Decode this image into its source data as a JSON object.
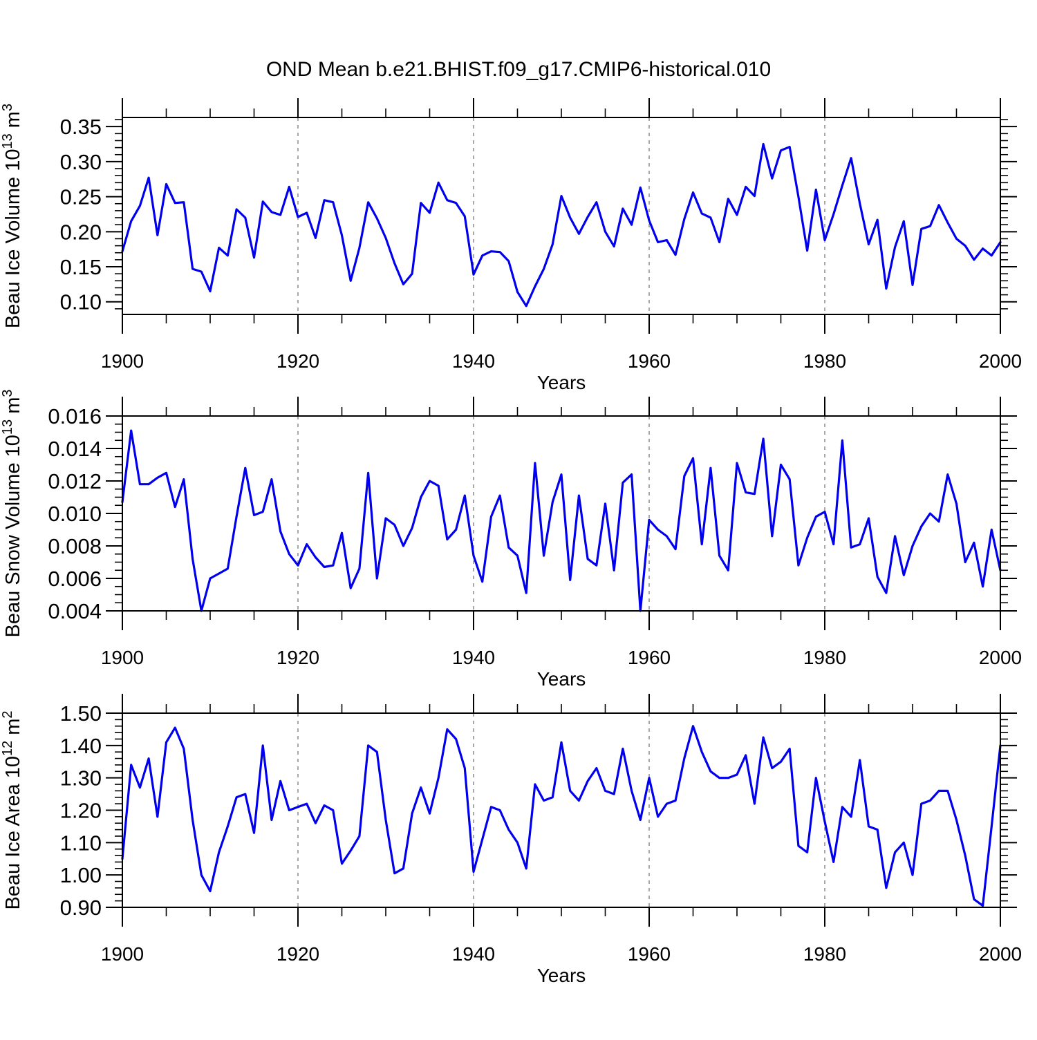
{
  "title": "OND Mean b.e21.BHIST.f09_g17.CMIP6-historical.010",
  "line_color": "#0000EE",
  "grid_color": "#8a8a8a",
  "frame_color": "#000000",
  "chart_data": [
    {
      "type": "line",
      "ylabel": "Beau Ice Volume 10^13 m^3",
      "ylabel_rich": [
        {
          "t": "Beau Ice Volume 10"
        },
        {
          "sup": "13"
        },
        {
          "t": " m"
        },
        {
          "sup": "3"
        }
      ],
      "xlabel": "Years",
      "x_first_year": 1900,
      "x_last_year": 2000,
      "ylim": [
        0.082,
        0.363
      ],
      "yticks": [
        0.1,
        0.15,
        0.2,
        0.25,
        0.3,
        0.35
      ],
      "ytick_labels": [
        "0.10",
        "0.15",
        "0.20",
        "0.25",
        "0.30",
        "0.35"
      ],
      "y_minor_step": 0.01,
      "xticks": [
        1900,
        1920,
        1940,
        1960,
        1980,
        2000
      ],
      "xtick_labels": [
        "1900",
        "1920",
        "1940",
        "1960",
        "1980",
        "2000"
      ],
      "x_minor_step": 5,
      "gridlines_x": [
        1920,
        1940,
        1960,
        1980
      ],
      "values": [
        0.172,
        0.215,
        0.237,
        0.277,
        0.195,
        0.268,
        0.241,
        0.242,
        0.147,
        0.143,
        0.115,
        0.177,
        0.166,
        0.232,
        0.22,
        0.163,
        0.243,
        0.228,
        0.224,
        0.264,
        0.221,
        0.227,
        0.191,
        0.245,
        0.242,
        0.195,
        0.13,
        0.177,
        0.242,
        0.219,
        0.191,
        0.155,
        0.125,
        0.14,
        0.241,
        0.227,
        0.27,
        0.245,
        0.241,
        0.222,
        0.139,
        0.166,
        0.172,
        0.171,
        0.158,
        0.114,
        0.094,
        0.122,
        0.147,
        0.182,
        0.251,
        0.22,
        0.197,
        0.221,
        0.242,
        0.2,
        0.179,
        0.233,
        0.21,
        0.263,
        0.216,
        0.185,
        0.188,
        0.167,
        0.218,
        0.256,
        0.226,
        0.22,
        0.185,
        0.247,
        0.224,
        0.264,
        0.251,
        0.325,
        0.276,
        0.316,
        0.321,
        0.25,
        0.173,
        0.26,
        0.188,
        0.225,
        0.266,
        0.305,
        0.24,
        0.182,
        0.217,
        0.119,
        0.178,
        0.215,
        0.124,
        0.204,
        0.208,
        0.238,
        0.213,
        0.19,
        0.18,
        0.16,
        0.176,
        0.166,
        0.185
      ]
    },
    {
      "type": "line",
      "ylabel": "Beau Snow Volume 10^13 m^3",
      "ylabel_rich": [
        {
          "t": "Beau Snow Volume 10"
        },
        {
          "sup": "13"
        },
        {
          "t": " m"
        },
        {
          "sup": "3"
        }
      ],
      "xlabel": "Years",
      "x_first_year": 1900,
      "x_last_year": 2000,
      "ylim": [
        0.004,
        0.016
      ],
      "yticks": [
        0.004,
        0.006,
        0.008,
        0.01,
        0.012,
        0.014,
        0.016
      ],
      "ytick_labels": [
        "0.004",
        "0.006",
        "0.008",
        "0.010",
        "0.012",
        "0.014",
        "0.016"
      ],
      "y_minor_step": 0.0005,
      "xticks": [
        1900,
        1920,
        1940,
        1960,
        1980,
        2000
      ],
      "xtick_labels": [
        "1900",
        "1920",
        "1940",
        "1960",
        "1980",
        "2000"
      ],
      "x_minor_step": 5,
      "gridlines_x": [
        1920,
        1940,
        1960,
        1980
      ],
      "values": [
        0.0107,
        0.0151,
        0.0118,
        0.0118,
        0.0122,
        0.0125,
        0.0104,
        0.0121,
        0.0072,
        0.004,
        0.006,
        0.0063,
        0.0066,
        0.0098,
        0.0128,
        0.0099,
        0.0101,
        0.0121,
        0.0089,
        0.0075,
        0.0068,
        0.0081,
        0.0073,
        0.0067,
        0.0068,
        0.0088,
        0.0054,
        0.0066,
        0.0125,
        0.006,
        0.0097,
        0.0093,
        0.008,
        0.0091,
        0.011,
        0.012,
        0.0117,
        0.0084,
        0.009,
        0.0111,
        0.0074,
        0.0058,
        0.0098,
        0.0111,
        0.0079,
        0.0074,
        0.0051,
        0.0131,
        0.0074,
        0.0107,
        0.0124,
        0.0059,
        0.0111,
        0.0072,
        0.0068,
        0.0106,
        0.0065,
        0.0119,
        0.0124,
        0.004,
        0.0096,
        0.009,
        0.0086,
        0.0078,
        0.0123,
        0.0134,
        0.0081,
        0.0128,
        0.0074,
        0.0065,
        0.0131,
        0.0113,
        0.0112,
        0.0146,
        0.0086,
        0.013,
        0.0121,
        0.0068,
        0.0085,
        0.0098,
        0.0101,
        0.0081,
        0.0145,
        0.0079,
        0.0081,
        0.0097,
        0.0061,
        0.0051,
        0.0086,
        0.0062,
        0.008,
        0.0092,
        0.01,
        0.0095,
        0.0124,
        0.0106,
        0.007,
        0.0082,
        0.0055,
        0.009,
        0.0065
      ]
    },
    {
      "type": "line",
      "ylabel": "Beau Ice Area 10^12 m^2",
      "ylabel_rich": [
        {
          "t": "Beau Ice Area 10"
        },
        {
          "sup": "12"
        },
        {
          "t": " m"
        },
        {
          "sup": "2"
        }
      ],
      "xlabel": "Years",
      "x_first_year": 1900,
      "x_last_year": 2000,
      "ylim": [
        0.9,
        1.5
      ],
      "yticks": [
        0.9,
        1.0,
        1.1,
        1.2,
        1.3,
        1.4,
        1.5
      ],
      "ytick_labels": [
        "0.90",
        "1.00",
        "1.10",
        "1.20",
        "1.30",
        "1.40",
        "1.50"
      ],
      "y_minor_step": 0.02,
      "xticks": [
        1900,
        1920,
        1940,
        1960,
        1980,
        2000
      ],
      "xtick_labels": [
        "1900",
        "1920",
        "1940",
        "1960",
        "1980",
        "2000"
      ],
      "x_minor_step": 5,
      "gridlines_x": [
        1920,
        1940,
        1960,
        1980
      ],
      "values": [
        1.05,
        1.34,
        1.27,
        1.36,
        1.18,
        1.41,
        1.455,
        1.39,
        1.17,
        1.0,
        0.95,
        1.07,
        1.15,
        1.24,
        1.25,
        1.13,
        1.4,
        1.17,
        1.29,
        1.2,
        1.21,
        1.22,
        1.16,
        1.215,
        1.2,
        1.035,
        1.075,
        1.12,
        1.4,
        1.38,
        1.17,
        1.005,
        1.02,
        1.19,
        1.27,
        1.19,
        1.3,
        1.45,
        1.42,
        1.33,
        1.01,
        1.11,
        1.21,
        1.2,
        1.14,
        1.1,
        1.02,
        1.28,
        1.23,
        1.24,
        1.41,
        1.26,
        1.23,
        1.29,
        1.33,
        1.26,
        1.25,
        1.39,
        1.26,
        1.17,
        1.3,
        1.18,
        1.22,
        1.23,
        1.36,
        1.46,
        1.38,
        1.32,
        1.3,
        1.3,
        1.31,
        1.37,
        1.22,
        1.425,
        1.33,
        1.35,
        1.39,
        1.09,
        1.07,
        1.3,
        1.165,
        1.04,
        1.21,
        1.18,
        1.355,
        1.15,
        1.14,
        0.96,
        1.07,
        1.1,
        1.0,
        1.22,
        1.23,
        1.26,
        1.26,
        1.17,
        1.06,
        0.925,
        0.905,
        1.15,
        1.4
      ]
    }
  ]
}
